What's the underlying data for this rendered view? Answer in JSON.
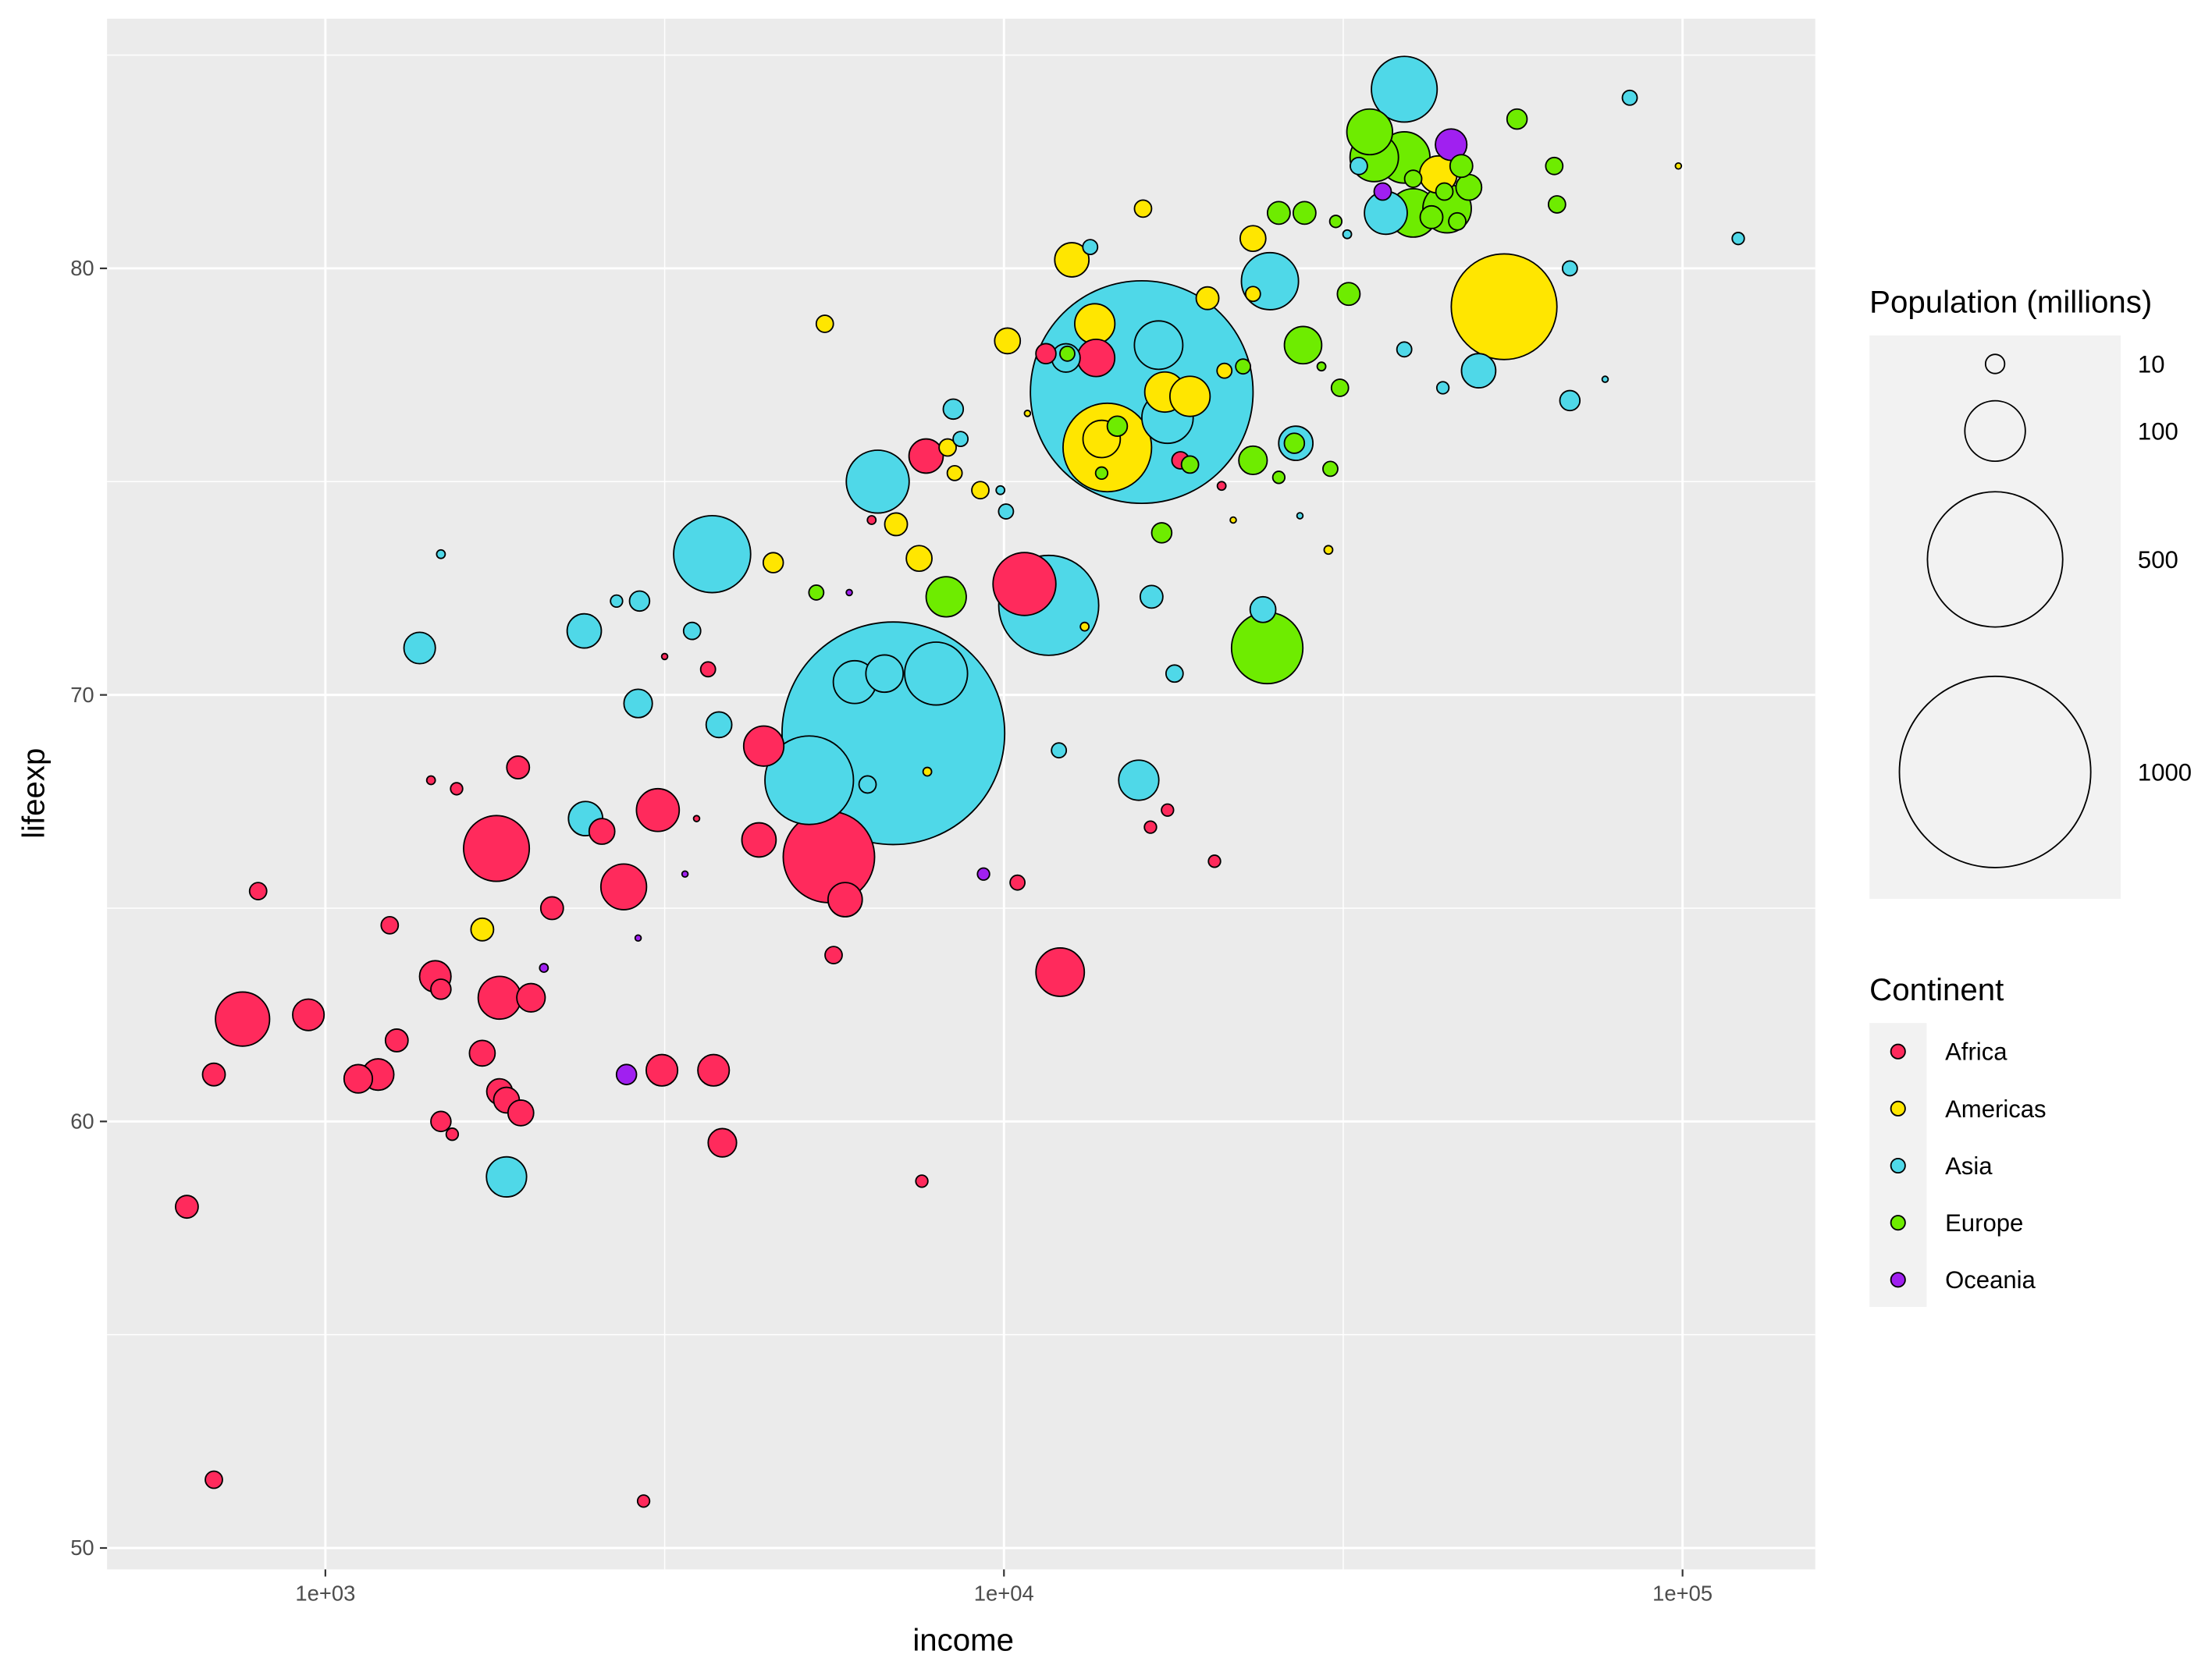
{
  "chart_data": {
    "type": "scatter",
    "xlabel": "income",
    "ylabel": "lifeexp",
    "x_scale": "log10",
    "xlim": [
      480,
      155000
    ],
    "ylim": [
      49.4,
      85.8
    ],
    "x_ticks": [
      1000,
      10000,
      100000
    ],
    "x_tick_labels": [
      "1e+03",
      "1e+04",
      "1e+05"
    ],
    "y_ticks": [
      50,
      60,
      70,
      80
    ],
    "y_tick_labels": [
      "50",
      "60",
      "70",
      "80"
    ],
    "grid": true,
    "point_format": [
      "income",
      "lifeexp",
      "population_millions"
    ],
    "size_legend": {
      "title": "Population (millions)",
      "values": [
        10,
        100,
        500,
        1000
      ],
      "labels": [
        "10",
        "100",
        "500",
        "1000"
      ]
    },
    "color_legend": {
      "title": "Continent",
      "placement": "right"
    },
    "series": [
      {
        "name": "Africa",
        "color": "#ff2a5c",
        "points": [
          [
            625,
            58.0,
            14
          ],
          [
            685,
            51.6,
            8
          ],
          [
            755,
            62.4,
            80
          ],
          [
            685,
            61.1,
            14
          ],
          [
            796,
            65.4,
            8
          ],
          [
            944,
            62.5,
            27
          ],
          [
            1118,
            61.0,
            22
          ],
          [
            1196,
            61.1,
            27
          ],
          [
            1244,
            64.6,
            8
          ],
          [
            1274,
            61.9,
            14
          ],
          [
            1452,
            63.4,
            27
          ],
          [
            1480,
            63.1,
            11
          ],
          [
            1480,
            60.0,
            11
          ],
          [
            1538,
            59.7,
            4
          ],
          [
            1431,
            68.0,
            2
          ],
          [
            1561,
            67.8,
            4
          ],
          [
            1787,
            66.4,
            118
          ],
          [
            1703,
            61.6,
            18
          ],
          [
            1806,
            60.7,
            18
          ],
          [
            1849,
            60.5,
            18
          ],
          [
            1806,
            62.9,
            50
          ],
          [
            1923,
            68.3,
            14
          ],
          [
            1941,
            60.2,
            18
          ],
          [
            2009,
            62.9,
            22
          ],
          [
            2158,
            65.0,
            14
          ],
          [
            2556,
            66.8,
            18
          ],
          [
            2752,
            65.5,
            57
          ],
          [
            3090,
            67.3,
            50
          ],
          [
            2944,
            51.1,
            4
          ],
          [
            3133,
            61.2,
            27
          ],
          [
            3524,
            67.1,
            1
          ],
          [
            3664,
            70.6,
            6
          ],
          [
            3162,
            70.9,
            1
          ],
          [
            3733,
            61.2,
            27
          ],
          [
            3846,
            59.5,
            22
          ],
          [
            4355,
            66.6,
            32
          ],
          [
            4426,
            68.8,
            44
          ],
          [
            5521,
            66.2,
            228
          ],
          [
            5834,
            65.2,
            32
          ],
          [
            5610,
            63.9,
            8
          ],
          [
            6383,
            74.1,
            2
          ],
          [
            7568,
            58.6,
            4
          ],
          [
            7678,
            75.6,
            32
          ],
          [
            10470,
            65.6,
            6
          ],
          [
            10720,
            72.6,
            108
          ],
          [
            11530,
            78.0,
            11
          ],
          [
            12100,
            63.5,
            64
          ],
          [
            13670,
            77.9,
            38
          ],
          [
            16440,
            66.9,
            4
          ],
          [
            17420,
            67.3,
            4
          ],
          [
            18200,
            75.5,
            8
          ],
          [
            20430,
            66.1,
            4
          ],
          [
            20930,
            74.9,
            2
          ]
        ]
      },
      {
        "name": "Americas",
        "color": "#ffe600",
        "points": [
          [
            1703,
            64.5,
            14
          ],
          [
            5445,
            78.7,
            8
          ],
          [
            4571,
            73.1,
            11
          ],
          [
            6934,
            74.0,
            14
          ],
          [
            7499,
            73.2,
            18
          ],
          [
            8260,
            75.8,
            8
          ],
          [
            8460,
            75.2,
            6
          ],
          [
            9230,
            74.8,
            8
          ],
          [
            7710,
            68.2,
            2
          ],
          [
            10120,
            78.3,
            18
          ],
          [
            10830,
            76.6,
            1
          ],
          [
            12590,
            80.2,
            32
          ],
          [
            16030,
            81.4,
            8
          ],
          [
            13610,
            78.7,
            44
          ],
          [
            14200,
            75.8,
            214
          ],
          [
            13930,
            76.0,
            38
          ],
          [
            17260,
            77.1,
            44
          ],
          [
            18800,
            77.0,
            44
          ],
          [
            19950,
            79.3,
            14
          ],
          [
            21130,
            77.6,
            6
          ],
          [
            23280,
            80.7,
            18
          ],
          [
            23280,
            79.4,
            6
          ],
          [
            21770,
            74.1,
            1
          ],
          [
            30070,
            73.4,
            2
          ],
          [
            54580,
            79.1,
            305
          ],
          [
            43650,
            82.2,
            38
          ],
          [
            98600,
            82.4,
            1
          ],
          [
            13150,
            71.6,
            2
          ]
        ]
      },
      {
        "name": "Asia",
        "color": "#4fd8e8",
        "points": [
          [
            1377,
            71.1,
            27
          ],
          [
            1480,
            73.3,
            2
          ],
          [
            1849,
            58.7,
            44
          ],
          [
            2407,
            71.5,
            32
          ],
          [
            2418,
            67.1,
            32
          ],
          [
            2686,
            72.2,
            4
          ],
          [
            2904,
            72.2,
            11
          ],
          [
            2890,
            69.8,
            22
          ],
          [
            3471,
            71.5,
            8
          ],
          [
            3802,
            69.3,
            18
          ],
          [
            3715,
            73.3,
            162
          ],
          [
            5164,
            68.0,
            214
          ],
          [
            6871,
            69.1,
            1354
          ],
          [
            6026,
            70.3,
            50
          ],
          [
            6668,
            70.5,
            38
          ],
          [
            7943,
            70.5,
            108
          ],
          [
            6295,
            67.9,
            8
          ],
          [
            6516,
            75.0,
            108
          ],
          [
            8420,
            76.7,
            11
          ],
          [
            8630,
            76.0,
            6
          ],
          [
            10070,
            74.3,
            6
          ],
          [
            9880,
            74.8,
            2
          ],
          [
            11640,
            72.1,
            273
          ],
          [
            12050,
            68.7,
            6
          ],
          [
            15800,
            68.0,
            44
          ],
          [
            15960,
            77.1,
            1354
          ],
          [
            16900,
            78.2,
            64
          ],
          [
            17420,
            76.5,
            72
          ],
          [
            16500,
            72.3,
            14
          ],
          [
            17840,
            70.5,
            8
          ],
          [
            12340,
            77.9,
            22
          ],
          [
            13400,
            80.5,
            6
          ],
          [
            24080,
            72.0,
            18
          ],
          [
            24660,
            79.7,
            89
          ],
          [
            26920,
            75.9,
            32
          ],
          [
            27300,
            74.2,
            1
          ],
          [
            32050,
            80.8,
            2
          ],
          [
            33340,
            82.4,
            8
          ],
          [
            36540,
            81.3,
            50
          ],
          [
            38900,
            84.2,
            118
          ],
          [
            38900,
            78.1,
            6
          ],
          [
            44340,
            77.2,
            4
          ],
          [
            50060,
            77.6,
            32
          ],
          [
            68230,
            80.0,
            6
          ],
          [
            68230,
            76.9,
            11
          ],
          [
            76900,
            77.4,
            1
          ],
          [
            83600,
            84.0,
            6
          ],
          [
            120800,
            80.7,
            4
          ]
        ]
      },
      {
        "name": "Europe",
        "color": "#6eec00",
        "points": [
          [
            5290,
            72.4,
            6
          ],
          [
            8220,
            72.3,
            44
          ],
          [
            12400,
            78.0,
            6
          ],
          [
            14690,
            76.3,
            11
          ],
          [
            13930,
            75.2,
            4
          ],
          [
            17080,
            73.8,
            11
          ],
          [
            18800,
            75.4,
            8
          ],
          [
            22510,
            77.7,
            6
          ],
          [
            23280,
            75.5,
            22
          ],
          [
            24430,
            71.1,
            139
          ],
          [
            25410,
            75.1,
            4
          ],
          [
            25410,
            81.3,
            14
          ],
          [
            27730,
            81.3,
            14
          ],
          [
            27590,
            78.2,
            38
          ],
          [
            26790,
            75.9,
            11
          ],
          [
            29370,
            77.7,
            2
          ],
          [
            30270,
            75.3,
            6
          ],
          [
            31270,
            77.2,
            8
          ],
          [
            30830,
            81.1,
            4
          ],
          [
            32210,
            79.4,
            14
          ],
          [
            34590,
            83.2,
            57
          ],
          [
            35130,
            82.6,
            64
          ],
          [
            38900,
            82.6,
            72
          ],
          [
            40090,
            81.3,
            64
          ],
          [
            44980,
            81.4,
            64
          ],
          [
            40090,
            82.1,
            8
          ],
          [
            42660,
            81.2,
            14
          ],
          [
            44570,
            81.8,
            8
          ],
          [
            46560,
            81.1,
            8
          ],
          [
            47210,
            82.4,
            14
          ],
          [
            48420,
            81.9,
            18
          ],
          [
            57030,
            83.5,
            11
          ],
          [
            64710,
            82.4,
            8
          ],
          [
            65310,
            81.5,
            8
          ]
        ]
      },
      {
        "name": "Oceania",
        "color": "#a020f0",
        "points": [
          [
            2778,
            61.1,
            11
          ],
          [
            2099,
            63.6,
            2
          ],
          [
            2890,
            64.3,
            1
          ],
          [
            3388,
            65.8,
            1
          ],
          [
            5916,
            72.4,
            1
          ],
          [
            9330,
            65.8,
            4
          ],
          [
            36150,
            81.8,
            8
          ],
          [
            45600,
            82.9,
            27
          ]
        ]
      }
    ]
  }
}
